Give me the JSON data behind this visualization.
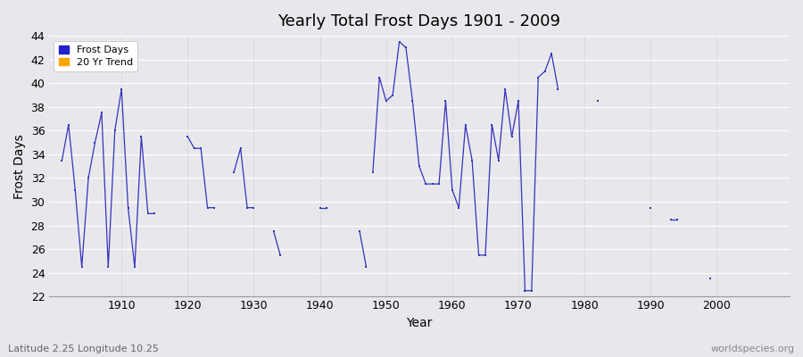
{
  "title": "Yearly Total Frost Days 1901 - 2009",
  "xlabel": "Year",
  "ylabel": "Frost Days",
  "subtitle": "Latitude 2.25 Longitude 10.25",
  "watermark": "worldspecies.org",
  "ylim": [
    22,
    44
  ],
  "xlim": [
    1899,
    2011
  ],
  "yticks": [
    22,
    24,
    26,
    28,
    30,
    32,
    34,
    36,
    38,
    40,
    42,
    44
  ],
  "xticks": [
    1910,
    1920,
    1930,
    1940,
    1950,
    1960,
    1970,
    1980,
    1990,
    2000
  ],
  "bg_color": "#e8e8ec",
  "line_color": "#3333bb",
  "legend_frost_color": "#2222cc",
  "legend_trend_color": "#ffa500",
  "segments": [
    {
      "years": [
        1901,
        1902,
        1903,
        1904,
        1905,
        1906,
        1907,
        1908,
        1909,
        1910,
        1911,
        1912,
        1913,
        1914,
        1915
      ],
      "vals": [
        33.5,
        36.5,
        31.0,
        24.5,
        32.0,
        35.0,
        37.5,
        24.5,
        36.0,
        39.5,
        29.5,
        24.5,
        35.5,
        29.0,
        29.0
      ]
    },
    {
      "years": [
        1920,
        1921,
        1922,
        1923,
        1924
      ],
      "vals": [
        35.5,
        34.5,
        34.5,
        29.5,
        29.5
      ]
    },
    {
      "years": [
        1927,
        1928,
        1929,
        1930
      ],
      "vals": [
        32.5,
        34.5,
        29.5,
        29.5
      ]
    },
    {
      "years": [
        1933,
        1934
      ],
      "vals": [
        27.5,
        25.5
      ]
    },
    {
      "years": [
        1940,
        1941
      ],
      "vals": [
        29.5,
        29.5
      ]
    },
    {
      "years": [
        1946,
        1947
      ],
      "vals": [
        27.5,
        24.5
      ]
    },
    {
      "years": [
        1948,
        1949,
        1950,
        1951,
        1952,
        1953,
        1954,
        1955,
        1956,
        1957,
        1958,
        1959,
        1960,
        1961,
        1962,
        1963,
        1964,
        1965,
        1966,
        1967,
        1968,
        1969,
        1970,
        1971,
        1972,
        1973,
        1974,
        1975,
        1976
      ],
      "vals": [
        32.5,
        40.5,
        38.5,
        39.0,
        43.5,
        43.0,
        38.5,
        33.0,
        31.5,
        31.5,
        31.5,
        38.5,
        31.0,
        29.5,
        36.5,
        33.5,
        25.5,
        25.5,
        36.5,
        33.5,
        39.5,
        35.5,
        38.5,
        22.5,
        22.5,
        40.5,
        41.0,
        42.5,
        39.5
      ]
    },
    {
      "years": [
        1982
      ],
      "vals": [
        38.5
      ]
    },
    {
      "years": [
        1990
      ],
      "vals": [
        29.5
      ]
    },
    {
      "years": [
        1993,
        1994
      ],
      "vals": [
        28.5,
        28.5
      ]
    },
    {
      "years": [
        1999
      ],
      "vals": [
        23.5
      ]
    }
  ]
}
